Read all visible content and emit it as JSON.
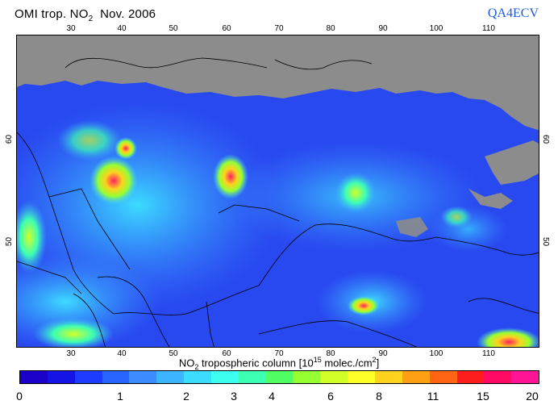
{
  "title": {
    "prefix": "OMI trop. NO",
    "sub": "2",
    "suffix": "  Nov. 2006"
  },
  "brand": "QA4ECV",
  "map": {
    "lon_ticks_top": [
      "30",
      "40",
      "50",
      "60",
      "70",
      "80",
      "90",
      "100",
      "110"
    ],
    "lon_ticks_bottom": [
      "30",
      "40",
      "50",
      "60",
      "70",
      "80",
      "90",
      "100",
      "110"
    ],
    "lat_ticks_left": [
      "60",
      "50"
    ],
    "lat_ticks_right": [
      "60",
      "50"
    ],
    "land_missing_color": "#8c8c8c",
    "background_low_color": "#2a4fe8"
  },
  "colorbar": {
    "label_prefix": "NO",
    "label_sub": "2",
    "label_mid": " tropospheric column [10",
    "label_sup": "15",
    "label_suffix": " molec./cm",
    "label_sup2": "2",
    "label_end": "]",
    "ticks": [
      "0",
      "1",
      "2",
      "3",
      "4",
      "6",
      "8",
      "11",
      "15",
      "20"
    ],
    "colors": [
      "#1a00c8",
      "#1414e6",
      "#1e3cff",
      "#2864ff",
      "#3c8cff",
      "#3cb4ff",
      "#3cdcff",
      "#3cfff0",
      "#3cffb4",
      "#50ff64",
      "#96ff32",
      "#d2ff28",
      "#ffff28",
      "#ffd21e",
      "#ffa014",
      "#ff6414",
      "#ff1e1e",
      "#ff0a64",
      "#ff1496"
    ]
  }
}
